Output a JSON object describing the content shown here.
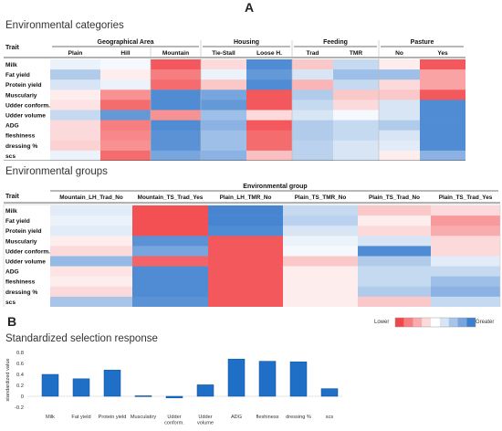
{
  "colors": {
    "low": "#f2474a",
    "mid": "#ffffff",
    "high": "#3d7fce",
    "bar": "#1f6fc7",
    "bar_edge": "#0d4f96"
  },
  "panel_a": {
    "letter": "A",
    "title1": "Environmental categories",
    "title2": "Environmental groups",
    "trait_header": "Trait",
    "traits": [
      "Milk",
      "Fat yield",
      "Protein yield",
      "Musculariy",
      "Udder conform.",
      "Udder volume",
      "ADG",
      "fleshiness",
      "dressing %",
      "scs"
    ],
    "groups": [
      {
        "label": "Geographical Area",
        "cols": [
          "Plain",
          "Hill",
          "Mountain"
        ]
      },
      {
        "label": "Housing",
        "cols": [
          "Tie-Stall",
          "Loose H."
        ]
      },
      {
        "label": "Feeding",
        "cols": [
          "Trad",
          "TMR"
        ]
      },
      {
        "label": "Pasture",
        "cols": [
          "No",
          "Yes"
        ]
      }
    ],
    "heat1": [
      [
        0.1,
        0.05,
        -0.9,
        -0.2,
        0.9,
        -0.3,
        0.3,
        -0.1,
        -0.9
      ],
      [
        0.4,
        -0.1,
        -0.7,
        0.1,
        0.8,
        0.2,
        0.5,
        0.5,
        -0.5
      ],
      [
        0.2,
        0.1,
        -0.8,
        -0.3,
        0.9,
        -0.4,
        0.3,
        -0.2,
        -0.5
      ],
      [
        -0.1,
        -0.6,
        0.9,
        0.7,
        -0.9,
        0.4,
        -0.3,
        -0.3,
        -0.9
      ],
      [
        -0.15,
        -0.8,
        0.9,
        0.8,
        -0.9,
        0.3,
        -0.2,
        0.2,
        0.9
      ],
      [
        0.3,
        0.8,
        -0.6,
        0.5,
        -0.2,
        0.2,
        0.05,
        0.2,
        0.9
      ],
      [
        -0.2,
        -0.7,
        0.9,
        0.6,
        -0.9,
        0.4,
        0.3,
        0.4,
        0.9
      ],
      [
        -0.2,
        -0.65,
        0.85,
        0.5,
        -0.8,
        0.4,
        0.3,
        0.2,
        0.9
      ],
      [
        -0.25,
        -0.6,
        0.85,
        0.5,
        -0.8,
        0.35,
        0.2,
        0.15,
        0.9
      ],
      [
        0.1,
        -0.8,
        0.7,
        0.6,
        -0.35,
        0.35,
        0.2,
        -0.1,
        0.6
      ]
    ],
    "env_group_header": "Environmental group",
    "env_groups": [
      "Mountain_LH_Trad_No",
      "Mountain_TS_Trad_Yes",
      "Plain_LH_TMR_No",
      "Plain_TS_TMR_No",
      "Plain_TS_Trad_No",
      "Plain_TS_Trad_Yes"
    ],
    "heat2": [
      [
        0.15,
        -0.95,
        0.95,
        0.3,
        -0.3,
        -0.2
      ],
      [
        0.1,
        -0.95,
        0.95,
        0.35,
        -0.1,
        -0.55
      ],
      [
        0.15,
        -0.95,
        0.9,
        0.2,
        -0.2,
        -0.45
      ],
      [
        -0.1,
        0.85,
        -0.9,
        0.1,
        0.2,
        -0.2
      ],
      [
        -0.2,
        0.7,
        -0.9,
        0.05,
        0.9,
        -0.2
      ],
      [
        0.55,
        -0.85,
        -0.9,
        -0.3,
        0.4,
        0.15
      ],
      [
        -0.15,
        0.9,
        -0.9,
        -0.1,
        0.3,
        0.3
      ],
      [
        -0.1,
        0.9,
        -0.9,
        -0.1,
        0.3,
        0.5
      ],
      [
        -0.2,
        0.9,
        -0.9,
        -0.1,
        0.4,
        0.6
      ],
      [
        0.45,
        0.85,
        -0.9,
        -0.1,
        -0.3,
        0.3
      ]
    ],
    "legend_low": "Lower",
    "legend_high": "Greater",
    "legend_steps": [
      -1,
      -0.7,
      -0.45,
      -0.2,
      0,
      0.2,
      0.45,
      0.7,
      1
    ]
  },
  "panel_b": {
    "letter": "B"
  },
  "chart_data": {
    "type": "bar",
    "title": "Standardized selection response",
    "ylabel": "standardized value",
    "categories": [
      "Milk",
      "Fat yield",
      "Protein yield",
      "Musculatiry",
      "Udder conform.",
      "Udder volume",
      "ADG",
      "fleshiness",
      "dressing %",
      "scs"
    ],
    "values": [
      0.4,
      0.32,
      0.48,
      0.01,
      -0.03,
      0.21,
      0.68,
      0.64,
      0.63,
      0.14
    ],
    "ylim": [
      -0.2,
      0.8
    ],
    "yticks": [
      "0.8",
      "0.6",
      "0.4",
      "0.2",
      "0",
      "-0.2"
    ]
  }
}
